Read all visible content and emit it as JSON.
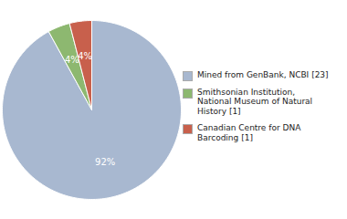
{
  "chart_data": {
    "type": "pie",
    "categories": [
      "Mined from GenBank, NCBI [23]",
      "Smithsonian Institution,\nNational Museum of Natural\nHistory [1]",
      "Canadian Centre for DNA\nBarcoding [1]"
    ],
    "values": [
      92,
      4,
      4
    ],
    "value_labels": [
      "92%",
      "4%",
      "4%"
    ],
    "data_labels": true,
    "colors": [
      "#a8b8d0",
      "#8db870",
      "#c8604c"
    ],
    "legend": "right"
  }
}
